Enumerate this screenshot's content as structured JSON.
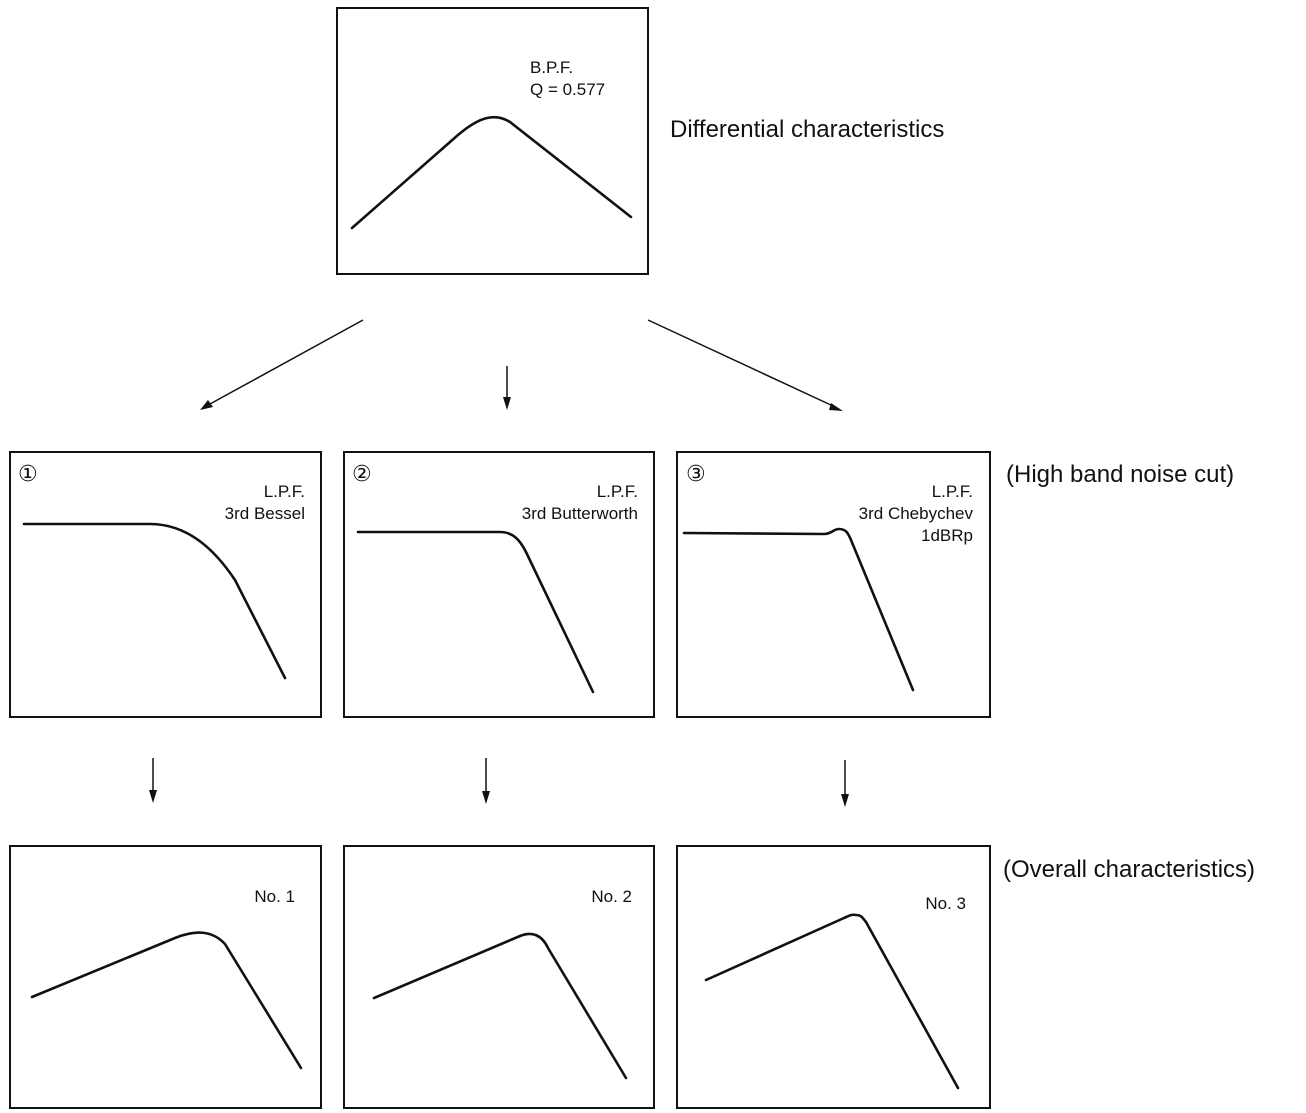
{
  "top": {
    "label_line1": "B.P.F.",
    "label_line2": "Q = 0.577",
    "side_label": "Differential characteristics"
  },
  "middle": {
    "side_label": "(High band noise cut)",
    "filters": [
      {
        "number": "①",
        "label_line1": "L.P.F.",
        "label_line2": "3rd Bessel",
        "label_line3": ""
      },
      {
        "number": "②",
        "label_line1": "L.P.F.",
        "label_line2": "3rd Butterworth",
        "label_line3": ""
      },
      {
        "number": "③",
        "label_line1": "L.P.F.",
        "label_line2": "3rd Chebychev",
        "label_line3": "1dBRp"
      }
    ]
  },
  "bottom": {
    "side_label": "(Overall characteristics)",
    "results": [
      {
        "label": "No. 1"
      },
      {
        "label": "No. 2"
      },
      {
        "label": "No. 3"
      }
    ]
  }
}
